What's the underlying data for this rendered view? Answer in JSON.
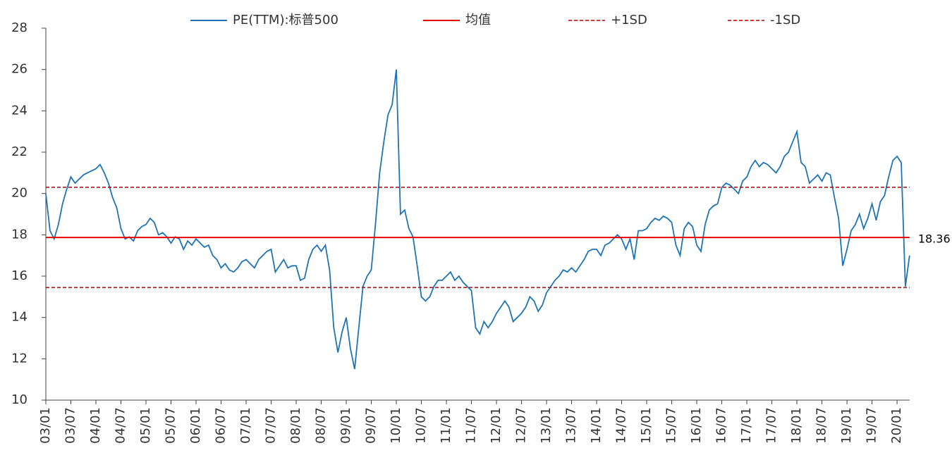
{
  "chart_data": {
    "type": "line",
    "categories": [
      "03/01",
      null,
      null,
      null,
      null,
      null,
      "03/07",
      null,
      null,
      null,
      null,
      null,
      "04/01",
      null,
      null,
      null,
      null,
      null,
      "04/07",
      null,
      null,
      null,
      null,
      null,
      "05/01",
      null,
      null,
      null,
      null,
      null,
      "05/07",
      null,
      null,
      null,
      null,
      null,
      "06/01",
      null,
      null,
      null,
      null,
      null,
      "06/07",
      null,
      null,
      null,
      null,
      null,
      "07/01",
      null,
      null,
      null,
      null,
      null,
      "07/07",
      null,
      null,
      null,
      null,
      null,
      "08/01",
      null,
      null,
      null,
      null,
      null,
      "08/07",
      null,
      null,
      null,
      null,
      null,
      "09/01",
      null,
      null,
      null,
      null,
      null,
      "09/07",
      null,
      null,
      null,
      null,
      null,
      "10/01",
      null,
      null,
      null,
      null,
      null,
      "10/07",
      null,
      null,
      null,
      null,
      null,
      "11/01",
      null,
      null,
      null,
      null,
      null,
      "11/07",
      null,
      null,
      null,
      null,
      null,
      "12/01",
      null,
      null,
      null,
      null,
      null,
      "12/07",
      null,
      null,
      null,
      null,
      null,
      "13/01",
      null,
      null,
      null,
      null,
      null,
      "13/07",
      null,
      null,
      null,
      null,
      null,
      "14/01",
      null,
      null,
      null,
      null,
      null,
      "14/07",
      null,
      null,
      null,
      null,
      null,
      "15/01",
      null,
      null,
      null,
      null,
      null,
      "15/07",
      null,
      null,
      null,
      null,
      null,
      "16/01",
      null,
      null,
      null,
      null,
      null,
      "16/07",
      null,
      null,
      null,
      null,
      null,
      "17/01",
      null,
      null,
      null,
      null,
      null,
      "17/07",
      null,
      null,
      null,
      null,
      null,
      "18/01",
      null,
      null,
      null,
      null,
      null,
      "18/07",
      null,
      null,
      null,
      null,
      null,
      "19/01",
      null,
      null,
      null,
      null,
      null,
      "19/07",
      null,
      null,
      null,
      null,
      null,
      "20/01",
      null,
      null,
      null
    ],
    "series": [
      {
        "name": "PE(TTM):标普500",
        "color": "#1f73b7",
        "values": [
          20,
          18.2,
          17.8,
          18.5,
          19.5,
          20.2,
          20.8,
          20.5,
          20.7,
          20.9,
          21,
          21.1,
          21.2,
          21.4,
          21,
          20.5,
          19.8,
          19.3,
          18.3,
          17.8,
          17.9,
          17.7,
          18.2,
          18.4,
          18.5,
          18.8,
          18.6,
          18,
          18.1,
          17.9,
          17.6,
          17.9,
          17.8,
          17.3,
          17.7,
          17.5,
          17.8,
          17.6,
          17.4,
          17.5,
          17,
          16.8,
          16.4,
          16.6,
          16.3,
          16.2,
          16.4,
          16.7,
          16.8,
          16.6,
          16.4,
          16.8,
          17,
          17.2,
          17.3,
          16.2,
          16.5,
          16.8,
          16.4,
          16.5,
          16.5,
          15.8,
          15.9,
          16.8,
          17.3,
          17.5,
          17.2,
          17.5,
          16.3,
          13.5,
          12.3,
          13.3,
          14,
          12.5,
          11.5,
          13.5,
          15.5,
          16,
          16.3,
          18.5,
          21,
          22.5,
          23.8,
          24.3,
          26,
          19,
          19.2,
          18.3,
          17.9,
          16.5,
          15,
          14.8,
          15,
          15.5,
          15.8,
          15.8,
          16,
          16.2,
          15.8,
          16,
          15.7,
          15.5,
          15.3,
          13.5,
          13.2,
          13.8,
          13.5,
          13.8,
          14.2,
          14.5,
          14.8,
          14.5,
          13.8,
          14,
          14.2,
          14.5,
          15,
          14.8,
          14.3,
          14.6,
          15.2,
          15.5,
          15.8,
          16,
          16.3,
          16.2,
          16.4,
          16.2,
          16.5,
          16.8,
          17.2,
          17.3,
          17.3,
          17,
          17.5,
          17.6,
          17.8,
          18,
          17.8,
          17.3,
          17.8,
          16.8,
          18.2,
          18.2,
          18.3,
          18.6,
          18.8,
          18.7,
          18.9,
          18.8,
          18.6,
          17.5,
          17,
          18.3,
          18.6,
          18.4,
          17.5,
          17.2,
          18.5,
          19.2,
          19.4,
          19.5,
          20.3,
          20.5,
          20.4,
          20.2,
          20,
          20.6,
          20.8,
          21.3,
          21.6,
          21.3,
          21.5,
          21.4,
          21.2,
          21,
          21.3,
          21.8,
          22,
          22.5,
          23,
          21.5,
          21.3,
          20.5,
          20.7,
          20.9,
          20.6,
          21,
          20.9,
          19.8,
          18.8,
          16.5,
          17.3,
          18.2,
          18.5,
          19,
          18.3,
          18.8,
          19.5,
          18.7,
          19.6,
          19.9,
          20.8,
          21.6,
          21.8,
          21.5,
          15.5,
          17
        ]
      }
    ],
    "reference_lines": [
      {
        "name": "均值",
        "value": 17.87,
        "color": "#e60000",
        "style": "solid"
      },
      {
        "name": "+1SD",
        "value": 20.3,
        "color": "#b00000",
        "style": "dashed"
      },
      {
        "name": "-1SD",
        "value": 15.45,
        "color": "#b00000",
        "style": "dashed"
      }
    ],
    "annotation": "18.36",
    "ylim": [
      10,
      28
    ],
    "yticks": [
      10,
      12,
      14,
      16,
      18,
      20,
      22,
      24,
      26,
      28
    ],
    "legend": "top"
  }
}
